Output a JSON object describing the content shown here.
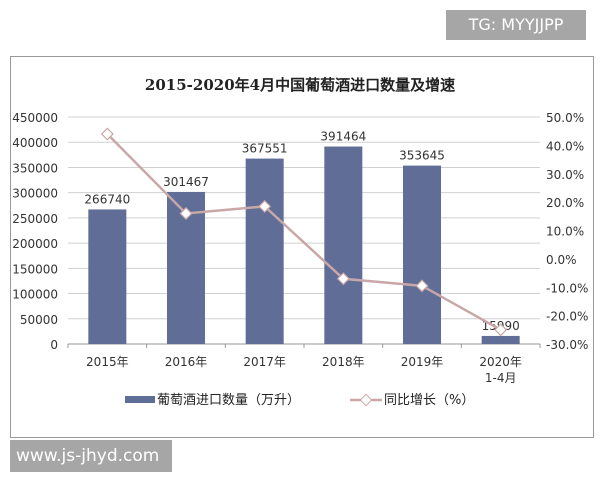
{
  "overlay": {
    "top_label": "TG: MYYJJPP",
    "bottom_label": "www.js-jhyd.com"
  },
  "chart_data": {
    "type": "bar",
    "title": "2015-2020年4月中国葡萄酒进口数量及增速",
    "categories": [
      "2015年",
      "2016年",
      "2017年",
      "2018年",
      "2019年",
      "2020年\n1-4月"
    ],
    "series": [
      {
        "name": "葡萄酒进口数量（万升）",
        "type": "bar",
        "axis": "left",
        "values": [
          266740,
          301467,
          367551,
          391464,
          353645,
          15990
        ],
        "color": "#5f6d97"
      },
      {
        "name": "同比增长（%）",
        "type": "line",
        "axis": "right",
        "values": [
          44,
          16,
          18.5,
          -7,
          -9.5,
          -25
        ],
        "color": "#c9a7a9"
      }
    ],
    "left_axis": {
      "ylim": [
        0,
        450000
      ],
      "ticks": [
        "0",
        "50000",
        "100000",
        "150000",
        "200000",
        "250000",
        "300000",
        "350000",
        "400000",
        "450000"
      ]
    },
    "right_axis": {
      "ylim": [
        -30,
        50
      ],
      "ticks": [
        "-30.0%",
        "-20.0%",
        "-10.0%",
        "0.0%",
        "10.0%",
        "20.0%",
        "30.0%",
        "40.0%",
        "50.0%"
      ]
    },
    "grid": true,
    "legend": "bottom"
  }
}
